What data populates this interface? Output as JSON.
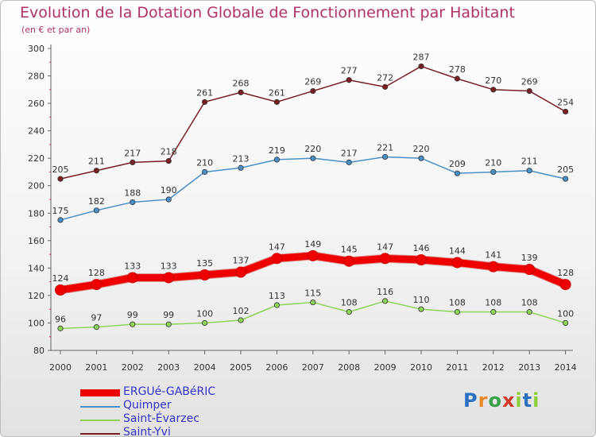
{
  "chart_data": {
    "type": "line",
    "title": "Evolution de la Dotation Globale de Fonctionnement par Habitant",
    "subtitle": "(en € et par an)",
    "xlabel": "",
    "ylabel": "",
    "ylim": [
      80,
      300
    ],
    "yticks": [
      80,
      100,
      120,
      140,
      160,
      180,
      200,
      220,
      240,
      260,
      280,
      300
    ],
    "categories": [
      "2000",
      "2001",
      "2002",
      "2003",
      "2004",
      "2005",
      "2006",
      "2007",
      "2008",
      "2009",
      "2010",
      "2011",
      "2012",
      "2013",
      "2014"
    ],
    "series": [
      {
        "name": "ERGUé-GABéRIC",
        "color": "#ee0000",
        "values": [
          124,
          128,
          133,
          133,
          135,
          137,
          147,
          149,
          145,
          147,
          146,
          144,
          141,
          139,
          128
        ]
      },
      {
        "name": "Quimper",
        "color": "#4a8fc8",
        "values": [
          175,
          182,
          188,
          190,
          210,
          213,
          219,
          220,
          217,
          221,
          220,
          209,
          210,
          211,
          205
        ]
      },
      {
        "name": "Saint-Évarzec",
        "color": "#8ed35a",
        "values": [
          96,
          97,
          99,
          99,
          100,
          102,
          113,
          115,
          108,
          116,
          110,
          108,
          108,
          108,
          100
        ]
      },
      {
        "name": "Saint-Yvi",
        "color": "#7a1e22",
        "values": [
          205,
          211,
          217,
          218,
          261,
          268,
          261,
          269,
          277,
          272,
          287,
          278,
          270,
          269,
          254
        ]
      }
    ],
    "legend_position": "bottom-left",
    "grid": false
  },
  "logo": {
    "letters": [
      "P",
      "r",
      "o",
      "x",
      "i",
      "t",
      "i"
    ],
    "colors": [
      "#2c6fbf",
      "#e8892a",
      "#3aa04a",
      "#d23a2a",
      "#8ccd3a",
      "#2c6fbf",
      "#8ccd3a"
    ]
  }
}
